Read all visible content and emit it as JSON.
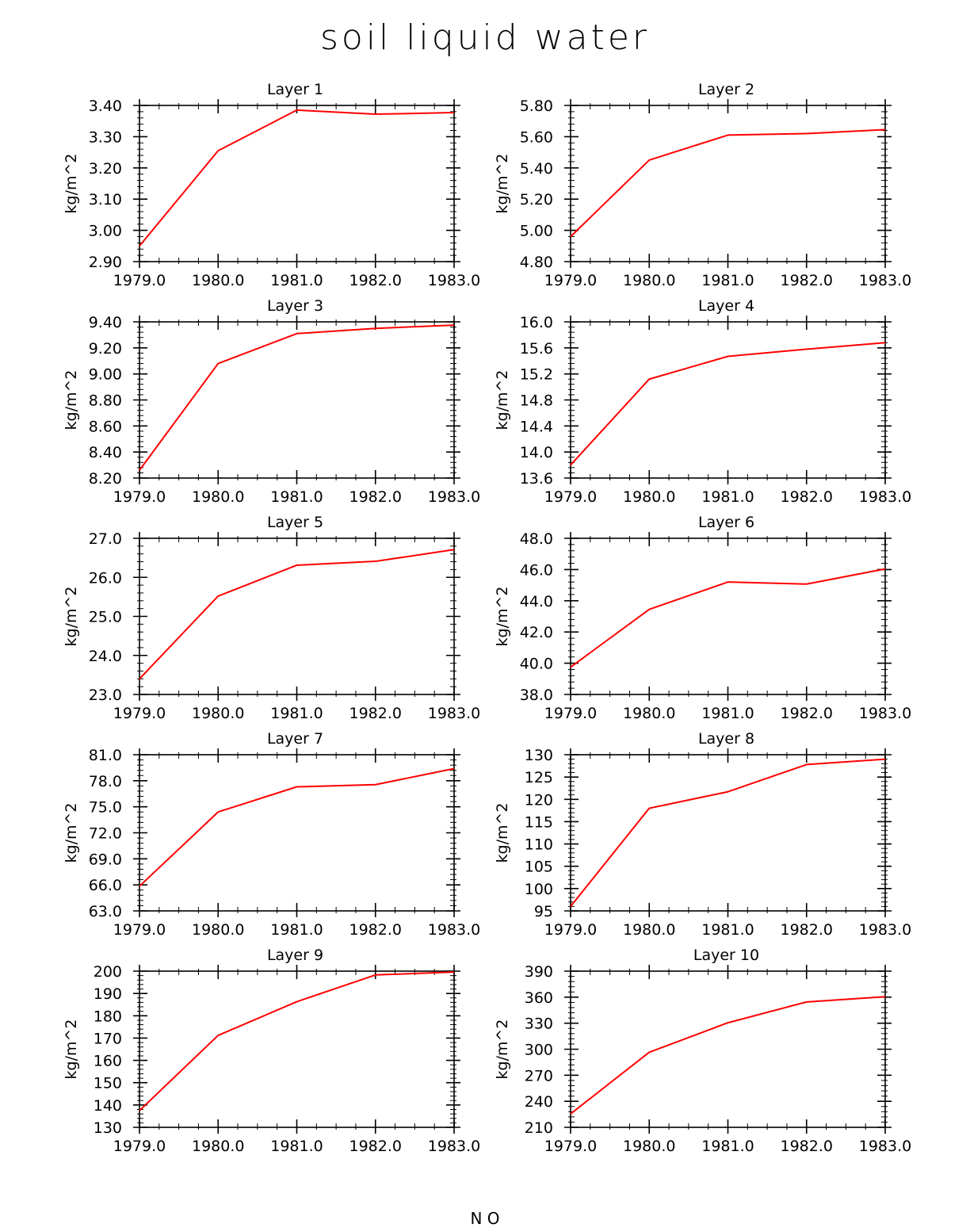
{
  "title": "soil liquid water",
  "footer": "N    O",
  "colors": {
    "line": "#ff0000",
    "axis": "#000000",
    "background": "#ffffff"
  },
  "chart_data": [
    {
      "type": "line",
      "title": "Layer 1",
      "xlabel": "",
      "ylabel": "kg/m^2",
      "x": [
        1979.0,
        1980.0,
        1981.0,
        1982.0,
        1983.0
      ],
      "xlim": [
        1979.0,
        1983.0
      ],
      "xticks": [
        "1979.0",
        "1980.0",
        "1981.0",
        "1982.0",
        "1983.0"
      ],
      "ylim": [
        2.9,
        3.4
      ],
      "yticks": [
        "2.90",
        "3.00",
        "3.10",
        "3.20",
        "3.30",
        "3.40"
      ],
      "series": [
        {
          "name": "Layer 1",
          "values": [
            2.95,
            3.255,
            3.385,
            3.372,
            3.377
          ]
        }
      ]
    },
    {
      "type": "line",
      "title": "Layer 2",
      "xlabel": "",
      "ylabel": "kg/m^2",
      "x": [
        1979.0,
        1980.0,
        1981.0,
        1982.0,
        1983.0
      ],
      "xlim": [
        1979.0,
        1983.0
      ],
      "xticks": [
        "1979.0",
        "1980.0",
        "1981.0",
        "1982.0",
        "1983.0"
      ],
      "ylim": [
        4.8,
        5.8
      ],
      "yticks": [
        "4.80",
        "5.00",
        "5.20",
        "5.40",
        "5.60",
        "5.80"
      ],
      "series": [
        {
          "name": "Layer 2",
          "values": [
            4.96,
            5.45,
            5.61,
            5.62,
            5.645
          ]
        }
      ]
    },
    {
      "type": "line",
      "title": "Layer 3",
      "xlabel": "",
      "ylabel": "kg/m^2",
      "x": [
        1979.0,
        1980.0,
        1981.0,
        1982.0,
        1983.0
      ],
      "xlim": [
        1979.0,
        1983.0
      ],
      "xticks": [
        "1979.0",
        "1980.0",
        "1981.0",
        "1982.0",
        "1983.0"
      ],
      "ylim": [
        8.2,
        9.4
      ],
      "yticks": [
        "8.20",
        "8.40",
        "8.60",
        "8.80",
        "9.00",
        "9.20",
        "9.40"
      ],
      "series": [
        {
          "name": "Layer 3",
          "values": [
            8.26,
            9.08,
            9.31,
            9.35,
            9.375
          ]
        }
      ]
    },
    {
      "type": "line",
      "title": "Layer 4",
      "xlabel": "",
      "ylabel": "kg/m^2",
      "x": [
        1979.0,
        1980.0,
        1981.0,
        1982.0,
        1983.0
      ],
      "xlim": [
        1979.0,
        1983.0
      ],
      "xticks": [
        "1979.0",
        "1980.0",
        "1981.0",
        "1982.0",
        "1983.0"
      ],
      "ylim": [
        13.6,
        16.0
      ],
      "yticks": [
        "13.6",
        "14.0",
        "14.4",
        "14.8",
        "15.2",
        "15.6",
        "16.0"
      ],
      "series": [
        {
          "name": "Layer 4",
          "values": [
            13.8,
            15.12,
            15.47,
            15.58,
            15.68
          ]
        }
      ]
    },
    {
      "type": "line",
      "title": "Layer 5",
      "xlabel": "",
      "ylabel": "kg/m^2",
      "x": [
        1979.0,
        1980.0,
        1981.0,
        1982.0,
        1983.0
      ],
      "xlim": [
        1979.0,
        1983.0
      ],
      "xticks": [
        "1979.0",
        "1980.0",
        "1981.0",
        "1982.0",
        "1983.0"
      ],
      "ylim": [
        23.0,
        27.0
      ],
      "yticks": [
        "23.0",
        "24.0",
        "25.0",
        "26.0",
        "27.0"
      ],
      "series": [
        {
          "name": "Layer 5",
          "values": [
            23.4,
            25.52,
            26.31,
            26.41,
            26.71
          ]
        }
      ]
    },
    {
      "type": "line",
      "title": "Layer 6",
      "xlabel": "",
      "ylabel": "kg/m^2",
      "x": [
        1979.0,
        1980.0,
        1981.0,
        1982.0,
        1983.0
      ],
      "xlim": [
        1979.0,
        1983.0
      ],
      "xticks": [
        "1979.0",
        "1980.0",
        "1981.0",
        "1982.0",
        "1983.0"
      ],
      "ylim": [
        38.0,
        48.0
      ],
      "yticks": [
        "38.0",
        "40.0",
        "42.0",
        "44.0",
        "46.0",
        "48.0"
      ],
      "series": [
        {
          "name": "Layer 6",
          "values": [
            39.75,
            43.45,
            45.2,
            45.07,
            46.04
          ]
        }
      ]
    },
    {
      "type": "line",
      "title": "Layer 7",
      "xlabel": "",
      "ylabel": "kg/m^2",
      "x": [
        1979.0,
        1980.0,
        1981.0,
        1982.0,
        1983.0
      ],
      "xlim": [
        1979.0,
        1983.0
      ],
      "xticks": [
        "1979.0",
        "1980.0",
        "1981.0",
        "1982.0",
        "1983.0"
      ],
      "ylim": [
        63.0,
        81.0
      ],
      "yticks": [
        "63.0",
        "66.0",
        "69.0",
        "72.0",
        "75.0",
        "78.0",
        "81.0"
      ],
      "series": [
        {
          "name": "Layer 7",
          "values": [
            65.85,
            74.4,
            77.3,
            77.55,
            79.4
          ]
        }
      ]
    },
    {
      "type": "line",
      "title": "Layer 8",
      "xlabel": "",
      "ylabel": "kg/m^2",
      "x": [
        1979.0,
        1980.0,
        1981.0,
        1982.0,
        1983.0
      ],
      "xlim": [
        1979.0,
        1983.0
      ],
      "xticks": [
        "1979.0",
        "1980.0",
        "1981.0",
        "1982.0",
        "1983.0"
      ],
      "ylim": [
        95,
        130
      ],
      "yticks": [
        "95",
        "100",
        "105",
        "110",
        "115",
        "120",
        "125",
        "130"
      ],
      "series": [
        {
          "name": "Layer 8",
          "values": [
            96.0,
            118.0,
            121.7,
            127.8,
            129.0
          ]
        }
      ]
    },
    {
      "type": "line",
      "title": "Layer 9",
      "xlabel": "",
      "ylabel": "kg/m^2",
      "x": [
        1979.0,
        1980.0,
        1981.0,
        1982.0,
        1983.0
      ],
      "xlim": [
        1979.0,
        1983.0
      ],
      "xticks": [
        "1979.0",
        "1980.0",
        "1981.0",
        "1982.0",
        "1983.0"
      ],
      "ylim": [
        130,
        200
      ],
      "yticks": [
        "130",
        "140",
        "150",
        "160",
        "170",
        "180",
        "190",
        "200"
      ],
      "series": [
        {
          "name": "Layer 9",
          "values": [
            137.5,
            171.2,
            186.3,
            198.3,
            199.6
          ]
        }
      ]
    },
    {
      "type": "line",
      "title": "Layer 10",
      "xlabel": "",
      "ylabel": "kg/m^2",
      "x": [
        1979.0,
        1980.0,
        1981.0,
        1982.0,
        1983.0
      ],
      "xlim": [
        1979.0,
        1983.0
      ],
      "xticks": [
        "1979.0",
        "1980.0",
        "1981.0",
        "1982.0",
        "1983.0"
      ],
      "ylim": [
        210,
        390
      ],
      "yticks": [
        "210",
        "240",
        "270",
        "300",
        "330",
        "360",
        "390"
      ],
      "series": [
        {
          "name": "Layer 10",
          "values": [
            225.5,
            296.5,
            330.5,
            354.5,
            360.5
          ]
        }
      ]
    }
  ]
}
